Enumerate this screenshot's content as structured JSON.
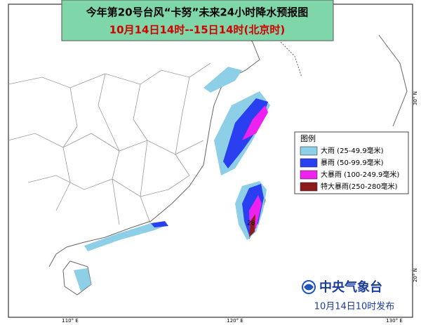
{
  "header": {
    "title": "今年第20号台风“卡努”未来24小时降水预报图",
    "subtitle": "10月14日14时--15日14时(北京时)"
  },
  "legend": {
    "title": "图例",
    "items": [
      {
        "label": "大雨 (25-49.9毫米)",
        "color": "#8ccfe6"
      },
      {
        "label": "暴雨 (50-99.9毫米)",
        "color": "#2a3ff0"
      },
      {
        "label": "大暴雨 (100-249.9毫米)",
        "color": "#ee22ee"
      },
      {
        "label": "特大暴雨(250-280毫米)",
        "color": "#8b1a1a"
      }
    ]
  },
  "axes": {
    "lon_labels": [
      "110° E",
      "120° E",
      "130° E"
    ],
    "lat_labels": [
      "30° N",
      "20° N"
    ]
  },
  "map_label": "28",
  "footer": {
    "agency": "中央气象台",
    "issued": "10月14日10时发布"
  }
}
